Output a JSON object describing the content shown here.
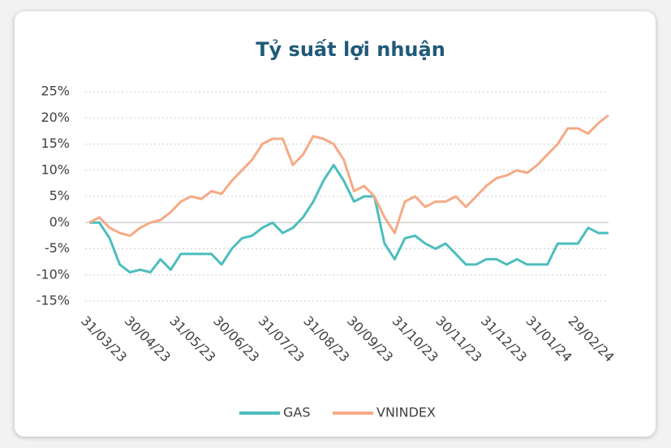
{
  "chart_data": {
    "type": "line",
    "title": "Tỷ suất lợi nhuận",
    "x": [
      "31/03/23",
      "07/04/23",
      "14/04/23",
      "21/04/23",
      "28/04/23",
      "05/05/23",
      "12/05/23",
      "19/05/23",
      "26/05/23",
      "02/06/23",
      "09/06/23",
      "16/06/23",
      "23/06/23",
      "30/06/23",
      "07/07/23",
      "14/07/23",
      "21/07/23",
      "28/07/23",
      "04/08/23",
      "11/08/23",
      "18/08/23",
      "25/08/23",
      "01/09/23",
      "08/09/23",
      "15/09/23",
      "22/09/23",
      "29/09/23",
      "06/10/23",
      "13/10/23",
      "20/10/23",
      "27/10/23",
      "03/11/23",
      "10/11/23",
      "17/11/23",
      "24/11/23",
      "01/12/23",
      "08/12/23",
      "15/12/23",
      "22/12/23",
      "29/12/23",
      "05/01/24",
      "12/01/24",
      "19/01/24",
      "26/01/24",
      "02/02/24",
      "09/02/24",
      "16/02/24",
      "23/02/24",
      "01/03/24",
      "08/03/24",
      "15/03/24",
      "22/03/24"
    ],
    "series": [
      {
        "name": "GAS",
        "color": "#4dbdbd",
        "values": [
          0,
          0,
          -3,
          -8,
          -9.5,
          -9,
          -9.5,
          -7,
          -9,
          -6,
          -6,
          -6,
          -6,
          -8,
          -5,
          -3,
          -2.5,
          -1,
          0,
          -2,
          -1,
          1,
          4,
          8,
          11,
          8,
          4,
          5,
          5,
          -4,
          -7,
          -3,
          -2.5,
          -4,
          -5,
          -4,
          -6,
          -8,
          -8,
          -7,
          -7,
          -8,
          -7,
          -8,
          -8,
          -8,
          -4,
          -4,
          -4,
          -1,
          -2,
          -2
        ]
      },
      {
        "name": "VNINDEX",
        "color": "#f5aa85",
        "values": [
          0,
          1,
          -1,
          -2,
          -2.5,
          -1,
          0,
          0.5,
          2,
          4,
          5,
          4.5,
          6,
          5.5,
          8,
          10,
          12,
          15,
          16,
          16,
          11,
          13,
          16.5,
          16,
          15,
          12,
          6,
          7,
          5,
          1,
          -2,
          4,
          5,
          3,
          4,
          4,
          5,
          3,
          5,
          7,
          8.5,
          9,
          10,
          9.5,
          11,
          13,
          15,
          18,
          18,
          17,
          19,
          20.5
        ]
      }
    ],
    "xlim": [
      "31/03/23",
      "22/03/24"
    ],
    "xticks": [
      "31/03/23",
      "30/04/23",
      "31/05/23",
      "30/06/23",
      "31/07/23",
      "31/08/23",
      "30/09/23",
      "31/10/23",
      "30/11/23",
      "31/12/23",
      "31/01/24",
      "29/02/24"
    ],
    "ylim": [
      -15,
      25
    ],
    "yticks": [
      {
        "value": -15,
        "label": "-15%"
      },
      {
        "value": -10,
        "label": "-10%"
      },
      {
        "value": -5,
        "label": "-5%"
      },
      {
        "value": 0,
        "label": "0%"
      },
      {
        "value": 5,
        "label": "5%"
      },
      {
        "value": 10,
        "label": "10%"
      },
      {
        "value": 15,
        "label": "15%"
      },
      {
        "value": 20,
        "label": "20%"
      },
      {
        "value": 25,
        "label": "25%"
      }
    ],
    "grid": true,
    "legend": "bottom"
  }
}
